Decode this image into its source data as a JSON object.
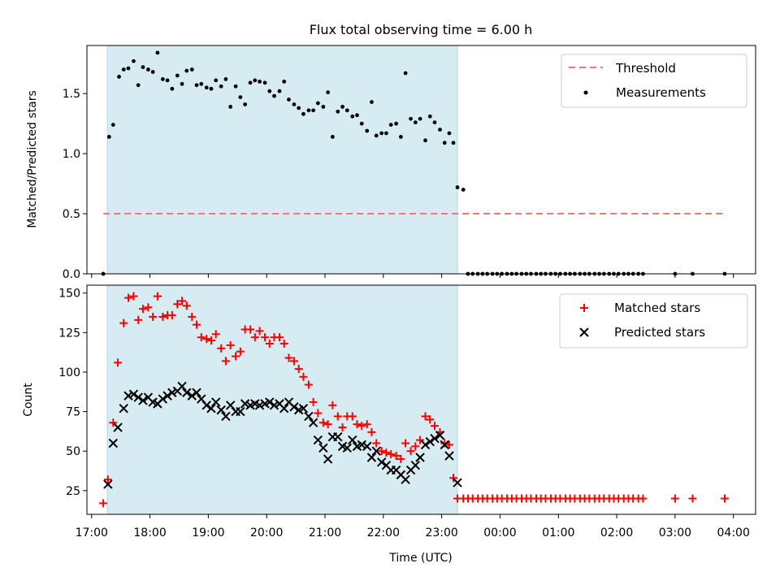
{
  "colors": {
    "span": "#add8e6",
    "threshold": "#ff7070",
    "matched": "#ff0000",
    "predicted": "#000000",
    "measurement": "#000000"
  },
  "chart_data": [
    {
      "type": "scatter",
      "title": "Flux total observing time = 6.00 h",
      "xlabel": "",
      "ylabel": "Matched/Predicted stars",
      "xlim": [
        16.92,
        28.38
      ],
      "ylim": [
        0,
        1.9
      ],
      "yticks": [
        0.0,
        0.5,
        1.0,
        1.5
      ],
      "ytick_labels": [
        "0.0",
        "0.5",
        "1.0",
        "1.5"
      ],
      "observing_span": [
        17.27,
        23.27
      ],
      "threshold": {
        "name": "Threshold",
        "value": 0.5,
        "x_range": [
          17.2,
          27.85
        ]
      },
      "legend": {
        "location": "top-right",
        "entries": [
          "Threshold",
          "Measurements"
        ]
      },
      "series": [
        {
          "name": "Measurements",
          "x": [
            17.2,
            17.3,
            17.37,
            17.47,
            17.55,
            17.63,
            17.72,
            17.8,
            17.88,
            17.97,
            18.05,
            18.13,
            18.22,
            18.3,
            18.38,
            18.47,
            18.55,
            18.63,
            18.72,
            18.8,
            18.88,
            18.97,
            19.05,
            19.13,
            19.22,
            19.3,
            19.38,
            19.47,
            19.55,
            19.63,
            19.72,
            19.8,
            19.88,
            19.97,
            20.05,
            20.13,
            20.22,
            20.3,
            20.38,
            20.47,
            20.55,
            20.63,
            20.72,
            20.8,
            20.88,
            20.97,
            21.05,
            21.13,
            21.22,
            21.3,
            21.38,
            21.47,
            21.55,
            21.63,
            21.72,
            21.8,
            21.88,
            21.97,
            22.05,
            22.13,
            22.22,
            22.3,
            22.38,
            22.47,
            22.55,
            22.63,
            22.72,
            22.8,
            22.88,
            22.97,
            23.05,
            23.13,
            23.2,
            23.27,
            23.37,
            23.45,
            23.53,
            23.62,
            23.7,
            23.78,
            23.87,
            23.95,
            24.03,
            24.12,
            24.2,
            24.28,
            24.37,
            24.45,
            24.53,
            24.62,
            24.7,
            24.78,
            24.87,
            24.95,
            25.03,
            25.12,
            25.2,
            25.28,
            25.37,
            25.45,
            25.53,
            25.62,
            25.7,
            25.78,
            25.87,
            25.95,
            26.03,
            26.12,
            26.2,
            26.28,
            26.37,
            26.45,
            27.0,
            27.3,
            27.85
          ],
          "y": [
            0.0,
            1.14,
            1.24,
            1.64,
            1.7,
            1.71,
            1.77,
            1.57,
            1.72,
            1.7,
            1.68,
            1.84,
            1.62,
            1.61,
            1.54,
            1.65,
            1.58,
            1.69,
            1.7,
            1.57,
            1.58,
            1.55,
            1.54,
            1.61,
            1.56,
            1.62,
            1.39,
            1.56,
            1.47,
            1.41,
            1.59,
            1.61,
            1.6,
            1.59,
            1.52,
            1.48,
            1.52,
            1.6,
            1.45,
            1.41,
            1.38,
            1.33,
            1.36,
            1.36,
            1.42,
            1.39,
            1.51,
            1.14,
            1.35,
            1.39,
            1.36,
            1.31,
            1.32,
            1.25,
            1.19,
            1.43,
            1.15,
            1.17,
            1.17,
            1.24,
            1.25,
            1.14,
            1.67,
            1.29,
            1.26,
            1.29,
            1.11,
            1.31,
            1.26,
            1.2,
            1.09,
            1.17,
            1.09,
            0.72,
            0.7,
            0.0,
            0.0,
            0.0,
            0.0,
            0.0,
            0.0,
            0.0,
            0.0,
            0.0,
            0.0,
            0.0,
            0.0,
            0.0,
            0.0,
            0.0,
            0.0,
            0.0,
            0.0,
            0.0,
            0.0,
            0.0,
            0.0,
            0.0,
            0.0,
            0.0,
            0.0,
            0.0,
            0.0,
            0.0,
            0.0,
            0.0,
            0.0,
            0.0,
            0.0,
            0.0,
            0.0,
            0.0,
            0.0,
            0.0,
            0.0
          ]
        }
      ]
    },
    {
      "type": "scatter",
      "title": "",
      "xlabel": "Time (UTC)",
      "ylabel": "Count",
      "xlim": [
        16.92,
        28.38
      ],
      "ylim": [
        10,
        155
      ],
      "yticks": [
        25,
        50,
        75,
        100,
        125,
        150
      ],
      "ytick_labels": [
        "25",
        "50",
        "75",
        "100",
        "125",
        "150"
      ],
      "xticks": [
        17,
        18,
        19,
        20,
        21,
        22,
        23,
        24,
        25,
        26,
        27,
        28
      ],
      "xtick_labels": [
        "17:00",
        "18:00",
        "19:00",
        "20:00",
        "21:00",
        "22:00",
        "23:00",
        "00:00",
        "01:00",
        "02:00",
        "03:00",
        "04:00"
      ],
      "observing_span": [
        17.27,
        23.27
      ],
      "legend": {
        "location": "top-right",
        "entries": [
          "Matched stars",
          "Predicted stars"
        ]
      },
      "series": [
        {
          "name": "Matched stars",
          "marker": "plus",
          "x": [
            17.2,
            17.28,
            17.37,
            17.45,
            17.55,
            17.63,
            17.72,
            17.8,
            17.88,
            17.97,
            18.05,
            18.13,
            18.22,
            18.3,
            18.38,
            18.47,
            18.55,
            18.63,
            18.72,
            18.8,
            18.88,
            18.97,
            19.05,
            19.13,
            19.22,
            19.3,
            19.38,
            19.47,
            19.55,
            19.63,
            19.72,
            19.8,
            19.88,
            19.97,
            20.05,
            20.13,
            20.22,
            20.3,
            20.38,
            20.47,
            20.55,
            20.63,
            20.72,
            20.8,
            20.88,
            20.97,
            21.05,
            21.13,
            21.22,
            21.3,
            21.38,
            21.47,
            21.55,
            21.63,
            21.72,
            21.8,
            21.88,
            21.97,
            22.05,
            22.13,
            22.22,
            22.3,
            22.38,
            22.47,
            22.55,
            22.63,
            22.72,
            22.8,
            22.88,
            22.97,
            23.05,
            23.13,
            23.2,
            23.27,
            23.37,
            23.45,
            23.53,
            23.62,
            23.7,
            23.78,
            23.87,
            23.95,
            24.03,
            24.12,
            24.2,
            24.28,
            24.37,
            24.45,
            24.53,
            24.62,
            24.7,
            24.78,
            24.87,
            24.95,
            25.03,
            25.12,
            25.2,
            25.28,
            25.37,
            25.45,
            25.53,
            25.62,
            25.7,
            25.78,
            25.87,
            25.95,
            26.03,
            26.12,
            26.2,
            26.28,
            26.37,
            26.45,
            27.0,
            27.3,
            27.85
          ],
          "y": [
            17,
            32,
            68,
            106,
            131,
            147,
            148,
            133,
            140,
            141,
            135,
            148,
            135,
            136,
            136,
            143,
            145,
            142,
            135,
            130,
            122,
            121,
            120,
            124,
            115,
            107,
            117,
            110,
            113,
            127,
            127,
            122,
            126,
            122,
            118,
            122,
            122,
            118,
            109,
            107,
            102,
            97,
            92,
            81,
            74,
            68,
            67,
            79,
            72,
            65,
            72,
            72,
            67,
            66,
            67,
            62,
            55,
            50,
            49,
            48,
            47,
            45,
            55,
            50,
            53,
            57,
            72,
            70,
            66,
            62,
            55,
            54,
            33,
            20,
            20,
            20,
            20,
            20,
            20,
            20,
            20,
            20,
            20,
            20,
            20,
            20,
            20,
            20,
            20,
            20,
            20,
            20,
            20,
            20,
            20,
            20,
            20,
            20,
            20,
            20,
            20,
            20,
            20,
            20,
            20,
            20,
            20,
            20,
            20,
            20,
            20,
            20,
            20,
            20,
            20
          ]
        },
        {
          "name": "Predicted stars",
          "marker": "x",
          "x": [
            17.28,
            17.37,
            17.45,
            17.55,
            17.63,
            17.72,
            17.8,
            17.88,
            17.97,
            18.05,
            18.13,
            18.22,
            18.3,
            18.38,
            18.47,
            18.55,
            18.63,
            18.72,
            18.8,
            18.88,
            18.97,
            19.05,
            19.13,
            19.22,
            19.3,
            19.38,
            19.47,
            19.55,
            19.63,
            19.72,
            19.8,
            19.88,
            19.97,
            20.05,
            20.13,
            20.22,
            20.3,
            20.38,
            20.47,
            20.55,
            20.63,
            20.72,
            20.8,
            20.88,
            20.97,
            21.05,
            21.13,
            21.22,
            21.3,
            21.38,
            21.47,
            21.55,
            21.63,
            21.72,
            21.8,
            21.88,
            21.97,
            22.05,
            22.13,
            22.22,
            22.3,
            22.38,
            22.47,
            22.55,
            22.63,
            22.72,
            22.8,
            22.88,
            22.97,
            23.05,
            23.13,
            23.27
          ],
          "y": [
            29,
            55,
            65,
            77,
            85,
            86,
            84,
            82,
            84,
            81,
            80,
            83,
            85,
            87,
            88,
            91,
            87,
            85,
            87,
            83,
            79,
            77,
            81,
            76,
            72,
            79,
            75,
            75,
            80,
            79,
            80,
            79,
            80,
            81,
            79,
            80,
            77,
            81,
            78,
            76,
            77,
            72,
            68,
            57,
            52,
            45,
            59,
            59,
            53,
            52,
            57,
            53,
            54,
            53,
            46,
            50,
            43,
            41,
            38,
            38,
            35,
            32,
            38,
            41,
            46,
            54,
            56,
            58,
            60,
            54,
            47,
            30
          ]
        }
      ]
    }
  ]
}
